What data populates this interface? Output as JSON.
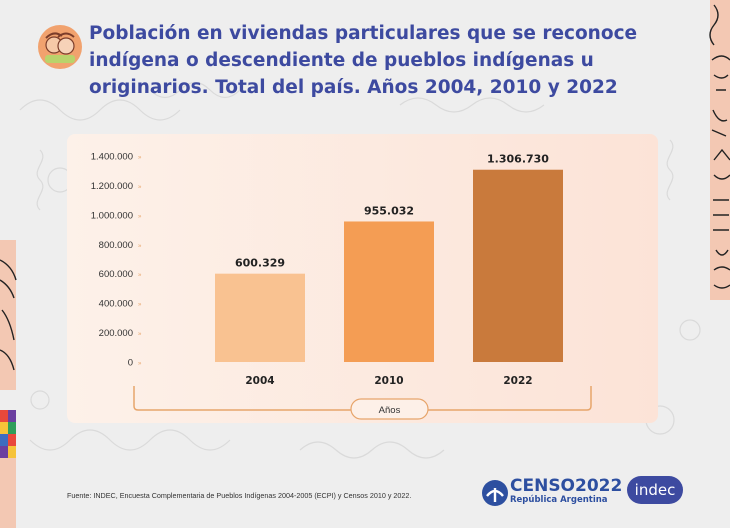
{
  "title": "Población en viviendas particulares que se reconoce indígena o descendiente de pueblos indígenas u originarios. Total del país. Años 2004, 2010 y 2022",
  "source": "Fuente: INDEC, Encuesta Complementaria de Pueblos Indígenas 2004-2005 (ECPI) y Censos 2010 y 2022.",
  "branding": {
    "censo_word": "CENSO2022",
    "censo_sub": "República Argentina",
    "indec": "indec"
  },
  "colors": {
    "title": "#3d4aa0",
    "bar_2004": "#f9c291",
    "bar_2010": "#f49d54",
    "bar_2022": "#c97a3c",
    "axis_bracket": "#e7a56b"
  },
  "chart_data": {
    "type": "bar",
    "categories": [
      "2004",
      "2010",
      "2022"
    ],
    "values": [
      600329,
      955032,
      1306730
    ],
    "value_labels": [
      "600.329",
      "955.032",
      "1.306.730"
    ],
    "xlabel": "Años",
    "ylabel": "",
    "ylim": [
      0,
      1400000
    ],
    "yticks": [
      0,
      200000,
      400000,
      600000,
      800000,
      1000000,
      1200000,
      1400000
    ],
    "ytick_labels": [
      "0",
      "200.000",
      "400.000",
      "600.000",
      "800.000",
      "1.000.000",
      "1.200.000",
      "1.400.000"
    ],
    "grid": false,
    "legend": "none"
  }
}
